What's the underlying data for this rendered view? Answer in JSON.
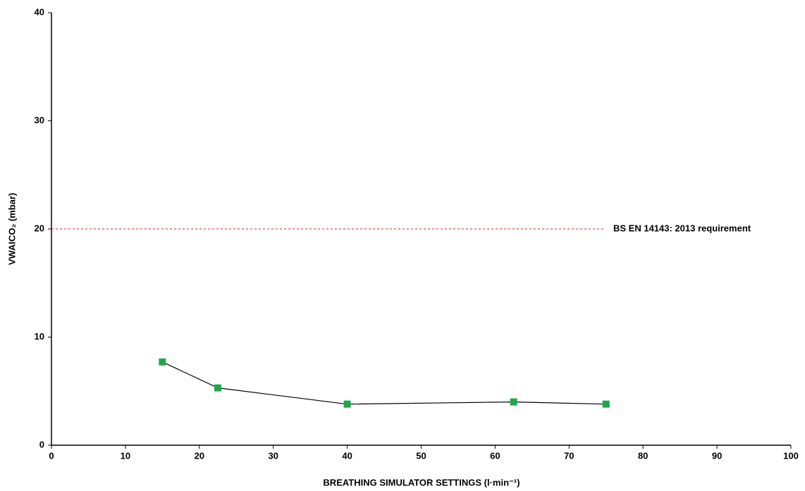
{
  "chart_data": {
    "type": "line",
    "xlabel": "BREATHING SIMULATOR SETTINGS (l·min⁻¹)",
    "ylabel": "VWAICO₂ (mbar)",
    "x": [
      15,
      22.5,
      40,
      62.5,
      75
    ],
    "series": [
      {
        "values": [
          7.7,
          5.3,
          3.8,
          4.0,
          3.8
        ],
        "color": "#1fa64a",
        "line_color": "#000000"
      }
    ],
    "xlim": [
      0,
      100
    ],
    "xticks": [
      0,
      10,
      20,
      30,
      40,
      50,
      60,
      70,
      80,
      90,
      100
    ],
    "ylim": [
      0,
      40
    ],
    "yticks": [
      0,
      10,
      20,
      30,
      40
    ],
    "grid": false,
    "reference_lines": [
      {
        "value": 20,
        "label": "BS EN 14143:  2013 requirement",
        "color": "#e02020"
      }
    ]
  }
}
